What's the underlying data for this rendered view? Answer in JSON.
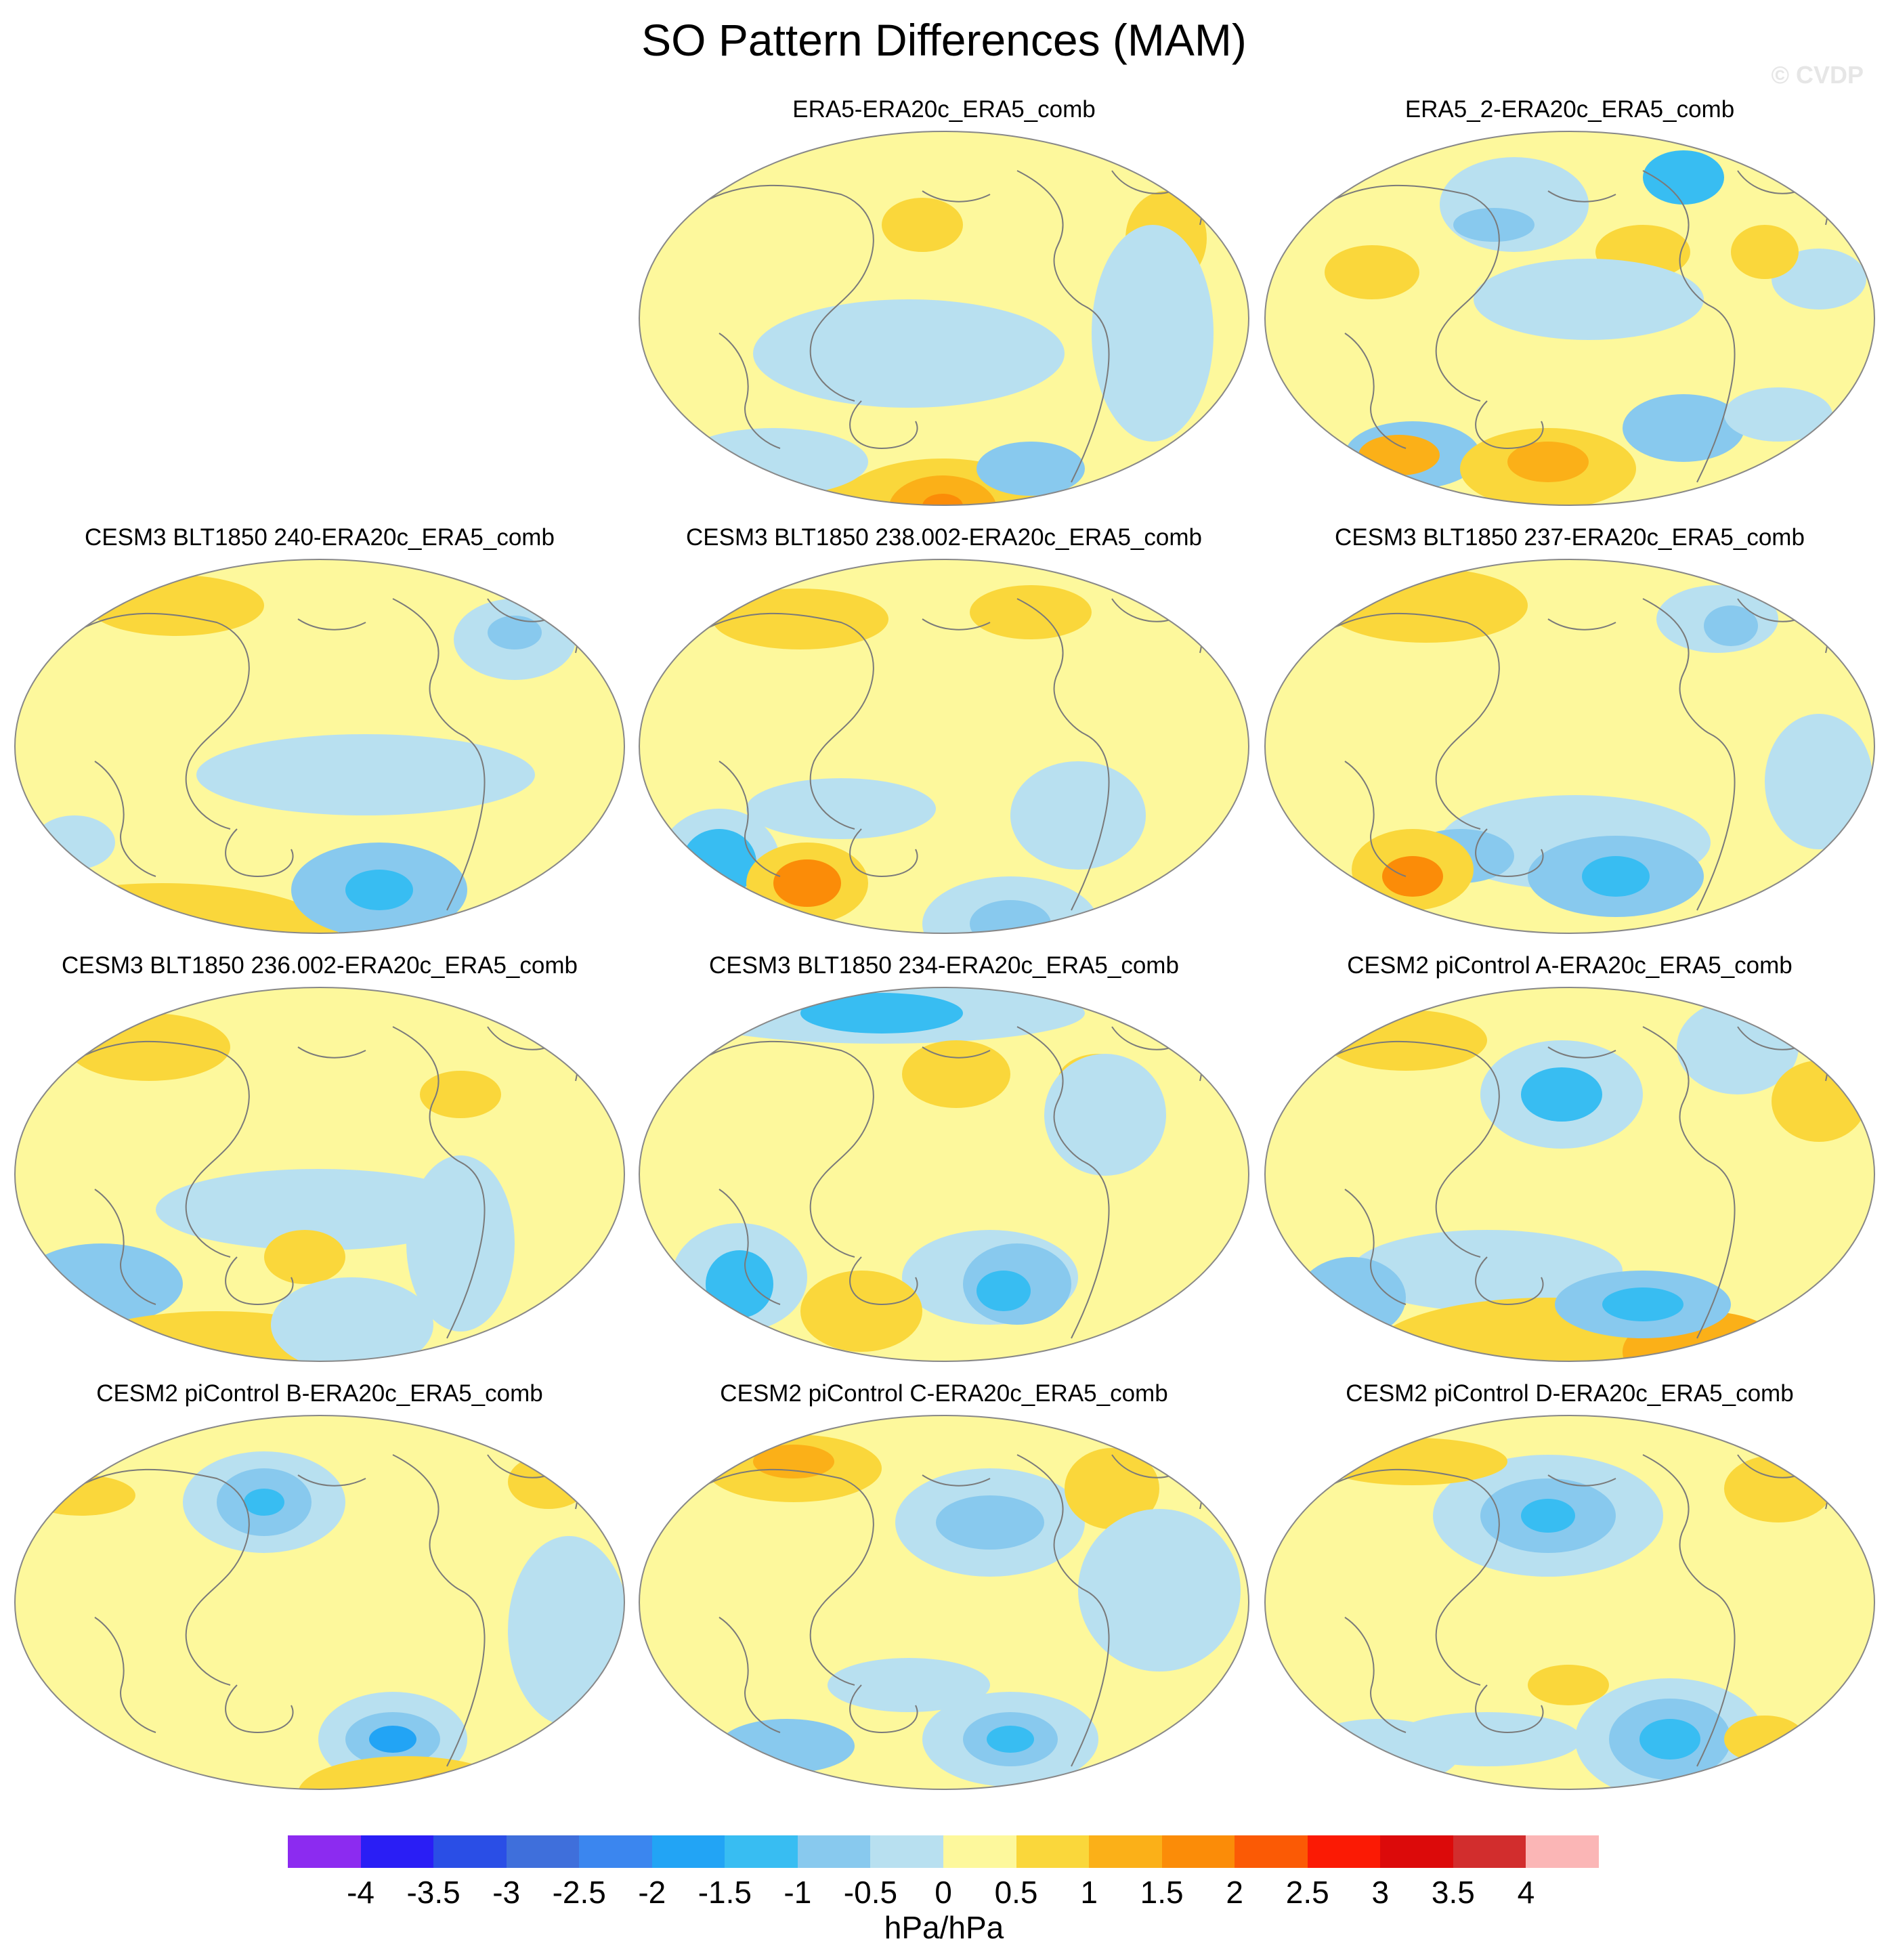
{
  "title": "SO Pattern Differences (MAM)",
  "watermark": "© CVDP",
  "panels": [
    {
      "title": "ERA5-ERA20c_ERA5_comb"
    },
    {
      "title": "ERA5_2-ERA20c_ERA5_comb"
    },
    {
      "title": "CESM3 BLT1850 240-ERA20c_ERA5_comb"
    },
    {
      "title": "CESM3 BLT1850 238.002-ERA20c_ERA5_comb"
    },
    {
      "title": "CESM3 BLT1850 237-ERA20c_ERA5_comb"
    },
    {
      "title": "CESM3 BLT1850 236.002-ERA20c_ERA5_comb"
    },
    {
      "title": "CESM3 BLT1850 234-ERA20c_ERA5_comb"
    },
    {
      "title": "CESM2 piControl A-ERA20c_ERA5_comb"
    },
    {
      "title": "CESM2 piControl B-ERA20c_ERA5_comb"
    },
    {
      "title": "CESM2 piControl C-ERA20c_ERA5_comb"
    },
    {
      "title": "CESM2 piControl D-ERA20c_ERA5_comb"
    }
  ],
  "colorbar": {
    "levels": [
      "-4",
      "-3.5",
      "-3",
      "-2.5",
      "-2",
      "-1.5",
      "-1",
      "-0.5",
      "0",
      "0.5",
      "1",
      "1.5",
      "2",
      "2.5",
      "3",
      "3.5",
      "4"
    ],
    "colors": [
      "#8c2bf0",
      "#2a1ef5",
      "#2a4ee6",
      "#3f6fdb",
      "#3b86ef",
      "#22a4f5",
      "#38bdf2",
      "#88c9ee",
      "#b8e0f0",
      "#fdf89c",
      "#fad73b",
      "#fbb018",
      "#fb8c08",
      "#fb5a05",
      "#fb1a04",
      "#dc0a0a",
      "#d22d2d",
      "#fbb6b6"
    ],
    "units": "hPa/hPa"
  },
  "map_style": {
    "ocean_base": "#fdf89c",
    "coast": "#7a7a7a",
    "border": "#888888"
  }
}
